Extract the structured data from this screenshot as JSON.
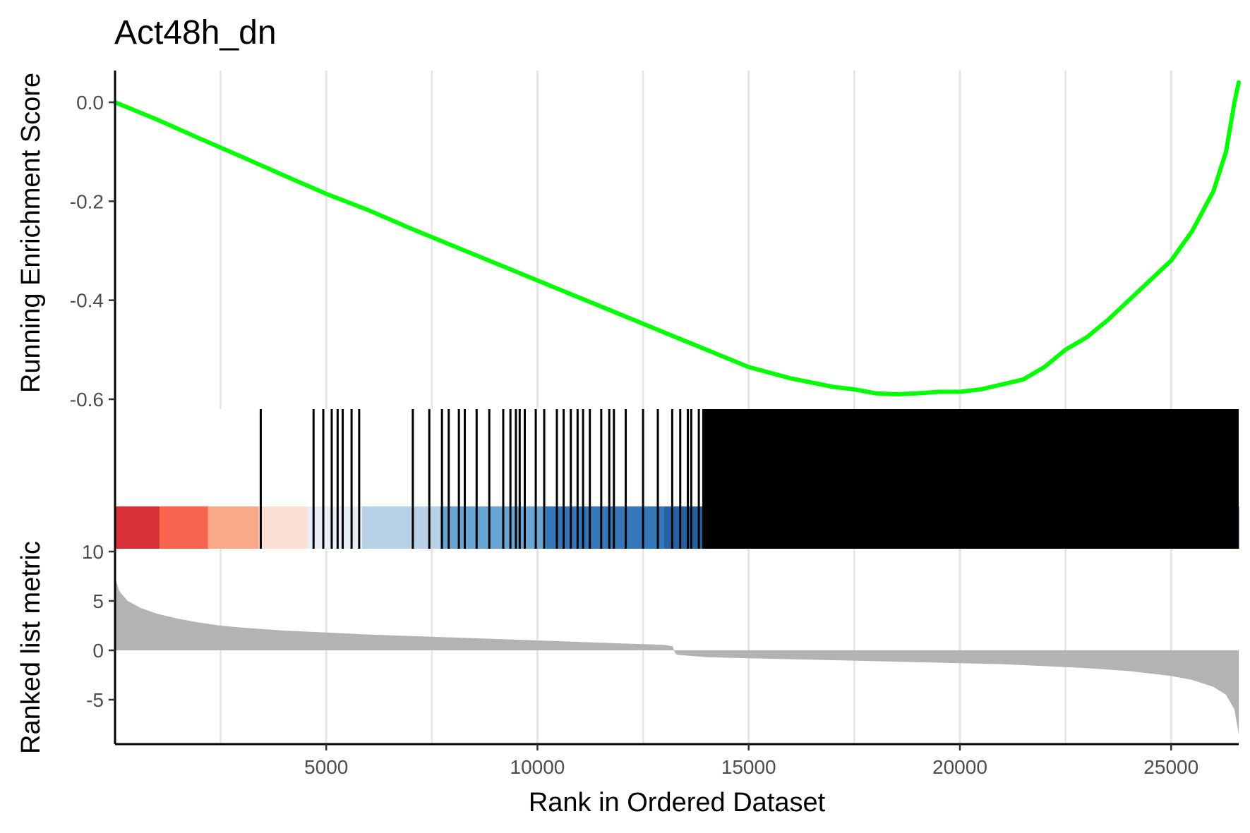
{
  "chart_data": {
    "type": "line",
    "title": "Act48h_dn",
    "xlabel": "Rank in Ordered Dataset",
    "xlim": [
      1,
      26600
    ],
    "x_ticks": [
      {
        "value": 5000,
        "label": "5000"
      },
      {
        "value": 10000,
        "label": "10000"
      },
      {
        "value": 15000,
        "label": "15000"
      },
      {
        "value": 20000,
        "label": "20000"
      },
      {
        "value": 25000,
        "label": "25000"
      }
    ],
    "grid": true,
    "colors": {
      "es_line": "#00ff00",
      "gene_ticks": "#000000",
      "metric_area": "#b3b3b3",
      "grid": "#e5e5e5"
    },
    "panels": {
      "enrichment": {
        "ylabel": "Running Enrichment Score",
        "ylim": [
          -0.6,
          0.0
        ],
        "y_ticks": [
          {
            "value": 0.0,
            "label": "0.0"
          },
          {
            "value": -0.2,
            "label": "-0.2"
          },
          {
            "value": -0.4,
            "label": "-0.4"
          },
          {
            "value": -0.6,
            "label": "-0.6"
          }
        ],
        "series": [
          {
            "color": "#00ff00",
            "x": [
              1,
              1000,
              2000,
              3000,
              4000,
              5000,
              6000,
              7000,
              8000,
              9000,
              10000,
              11000,
              12000,
              13000,
              14000,
              15000,
              16000,
              17000,
              17500,
              18000,
              18500,
              19000,
              19500,
              20000,
              20500,
              21000,
              21500,
              22000,
              22500,
              23000,
              23500,
              24000,
              24500,
              25000,
              25500,
              26000,
              26300,
              26500,
              26600
            ],
            "values": [
              0.0,
              -0.035,
              -0.073,
              -0.11,
              -0.148,
              -0.185,
              -0.218,
              -0.255,
              -0.29,
              -0.325,
              -0.36,
              -0.395,
              -0.43,
              -0.465,
              -0.5,
              -0.535,
              -0.558,
              -0.575,
              -0.58,
              -0.588,
              -0.59,
              -0.588,
              -0.585,
              -0.585,
              -0.58,
              -0.57,
              -0.56,
              -0.535,
              -0.5,
              -0.475,
              -0.44,
              -0.4,
              -0.36,
              -0.32,
              -0.26,
              -0.18,
              -0.1,
              0.0,
              0.04
            ]
          }
        ]
      },
      "gene_hits": {
        "hit_positions": [
          3450,
          4700,
          4930,
          5130,
          5270,
          5390,
          5600,
          5780,
          7050,
          7440,
          7740,
          7900,
          8140,
          8280,
          8560,
          8860,
          9190,
          9360,
          9490,
          9580,
          9700,
          9960,
          10160,
          10460,
          10620,
          10790,
          10950,
          11080,
          11240,
          11510,
          11700,
          11810,
          12090,
          12500,
          12850,
          13190,
          13380,
          13560,
          13640,
          13820
        ],
        "dense_ranges": [
          [
            13900,
            26600
          ]
        ]
      },
      "color_bar": {
        "segments": [
          {
            "start": 1,
            "end": 1050,
            "color": "#d73038"
          },
          {
            "start": 1050,
            "end": 2200,
            "color": "#f76550"
          },
          {
            "start": 2200,
            "end": 3400,
            "color": "#f9a88a"
          },
          {
            "start": 3400,
            "end": 4550,
            "color": "#fce0d4"
          },
          {
            "start": 4550,
            "end": 5850,
            "color": "#e8eef8"
          },
          {
            "start": 5850,
            "end": 7700,
            "color": "#b9d1e6"
          },
          {
            "start": 7700,
            "end": 10200,
            "color": "#69a5d2"
          },
          {
            "start": 10200,
            "end": 13000,
            "color": "#3677b9"
          },
          {
            "start": 13000,
            "end": 23250,
            "color": "#2662a2"
          },
          {
            "start": 23250,
            "end": 26600,
            "color": "#0d367d"
          }
        ]
      },
      "ranked_metric": {
        "ylabel": "Ranked list metric",
        "ylim": [
          -8.5,
          10
        ],
        "y_ticks": [
          {
            "value": 10,
            "label": "10"
          },
          {
            "value": 5,
            "label": "5"
          },
          {
            "value": 0,
            "label": "0"
          },
          {
            "value": -5,
            "label": "-5"
          }
        ],
        "series": [
          {
            "color": "#b3b3b3",
            "x": [
              1,
              30,
              100,
              300,
              600,
              1000,
              1500,
              2000,
              2500,
              3000,
              4000,
              5000,
              6000,
              7000,
              8000,
              9000,
              10000,
              11000,
              12000,
              13000,
              13200,
              13260,
              13300,
              14000,
              15000,
              16000,
              17000,
              18000,
              19000,
              20000,
              21000,
              22000,
              23000,
              24000,
              25000,
              25500,
              26000,
              26300,
              26500,
              26600
            ],
            "values": [
              8.0,
              7.0,
              6.0,
              5.0,
              4.3,
              3.7,
              3.2,
              2.8,
              2.5,
              2.3,
              2.0,
              1.8,
              1.6,
              1.45,
              1.3,
              1.15,
              1.0,
              0.85,
              0.7,
              0.55,
              0.4,
              -0.3,
              -0.45,
              -0.7,
              -0.8,
              -0.9,
              -1.0,
              -1.1,
              -1.2,
              -1.3,
              -1.4,
              -1.6,
              -1.8,
              -2.1,
              -2.6,
              -3.0,
              -3.7,
              -4.5,
              -6.0,
              -8.5
            ]
          }
        ]
      }
    }
  }
}
